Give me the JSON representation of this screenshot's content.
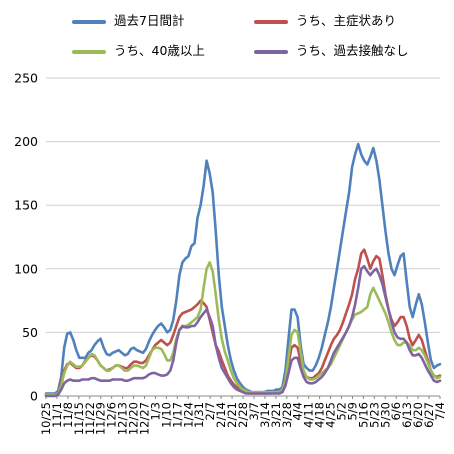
{
  "chart_data": {
    "type": "line",
    "title": "",
    "xlabel": "",
    "ylabel": "",
    "ylim": [
      0,
      250
    ],
    "yticks": [
      0,
      50,
      100,
      150,
      200,
      250
    ],
    "grid": true,
    "legend_position": "top",
    "xtick_labels": [
      "10/25",
      "11/1",
      "11/8",
      "11/15",
      "11/22",
      "11/29",
      "12/6",
      "12/13",
      "12/20",
      "12/27",
      "1/3",
      "1/10",
      "1/17",
      "1/24",
      "1/31",
      "2/7",
      "2/14",
      "2/21",
      "2/28",
      "3/7",
      "3/14",
      "3/21",
      "3/28",
      "4/4",
      "4/11",
      "4/18",
      "4/25",
      "5/2",
      "5/9",
      "5/16",
      "5/23",
      "5/30",
      "6/6",
      "6/13",
      "6/20",
      "6/27",
      "7/4"
    ],
    "series": [
      {
        "name": "過去7日間計",
        "color": "#4f81bd",
        "values": [
          2,
          2,
          2,
          2,
          4,
          15,
          38,
          49,
          50,
          44,
          36,
          30,
          30,
          30,
          34,
          36,
          40,
          43,
          45,
          38,
          33,
          32,
          34,
          35,
          36,
          34,
          32,
          33,
          37,
          38,
          36,
          35,
          34,
          37,
          43,
          48,
          52,
          55,
          57,
          54,
          50,
          52,
          60,
          75,
          95,
          105,
          108,
          110,
          118,
          120,
          140,
          150,
          165,
          185,
          175,
          160,
          130,
          95,
          70,
          55,
          40,
          28,
          20,
          14,
          10,
          7,
          5,
          4,
          3,
          3,
          3,
          3,
          3,
          4,
          4,
          4,
          5,
          5,
          7,
          20,
          45,
          68,
          68,
          62,
          40,
          25,
          22,
          20,
          20,
          24,
          30,
          38,
          48,
          58,
          70,
          85,
          100,
          115,
          130,
          145,
          160,
          180,
          190,
          198,
          190,
          185,
          182,
          188,
          195,
          185,
          170,
          150,
          130,
          112,
          100,
          95,
          103,
          110,
          112,
          90,
          70,
          62,
          72,
          80,
          72,
          58,
          42,
          28,
          22,
          24,
          25
        ]
      },
      {
        "name": "うち、主症状あり",
        "color": "#c0504d",
        "values": [
          1,
          1,
          1,
          1,
          2,
          10,
          20,
          25,
          26,
          24,
          22,
          22,
          24,
          28,
          30,
          32,
          31,
          28,
          24,
          22,
          20,
          21,
          22,
          24,
          24,
          23,
          22,
          22,
          25,
          27,
          27,
          26,
          26,
          28,
          32,
          36,
          40,
          42,
          44,
          42,
          40,
          42,
          48,
          55,
          62,
          65,
          66,
          67,
          68,
          70,
          72,
          75,
          73,
          70,
          60,
          50,
          40,
          35,
          28,
          22,
          16,
          12,
          9,
          7,
          5,
          4,
          3,
          2,
          2,
          2,
          2,
          2,
          2,
          2,
          2,
          3,
          3,
          3,
          4,
          10,
          25,
          38,
          40,
          38,
          28,
          18,
          15,
          14,
          14,
          16,
          18,
          22,
          28,
          34,
          40,
          45,
          48,
          52,
          58,
          65,
          72,
          80,
          92,
          100,
          112,
          115,
          108,
          100,
          106,
          110,
          108,
          95,
          80,
          68,
          60,
          55,
          58,
          62,
          62,
          55,
          45,
          40,
          44,
          48,
          44,
          36,
          28,
          20,
          16,
          15,
          16
        ]
      },
      {
        "name": "うち、40歳以上",
        "color": "#9bbb59",
        "values": [
          1,
          1,
          1,
          1,
          2,
          8,
          18,
          24,
          27,
          25,
          23,
          23,
          24,
          27,
          30,
          33,
          32,
          28,
          24,
          22,
          20,
          20,
          22,
          24,
          24,
          22,
          20,
          20,
          22,
          24,
          24,
          23,
          22,
          24,
          30,
          36,
          38,
          38,
          37,
          33,
          28,
          28,
          34,
          45,
          52,
          54,
          55,
          56,
          58,
          60,
          62,
          68,
          85,
          100,
          105,
          98,
          80,
          60,
          45,
          35,
          28,
          20,
          14,
          10,
          7,
          5,
          4,
          3,
          3,
          3,
          3,
          3,
          3,
          3,
          3,
          3,
          3,
          3,
          5,
          12,
          30,
          48,
          52,
          50,
          35,
          20,
          15,
          13,
          13,
          14,
          16,
          18,
          20,
          22,
          25,
          30,
          35,
          40,
          45,
          50,
          55,
          60,
          64,
          65,
          66,
          68,
          70,
          80,
          85,
          80,
          75,
          70,
          65,
          58,
          50,
          44,
          40,
          40,
          42,
          42,
          40,
          36,
          36,
          38,
          36,
          32,
          26,
          20,
          16,
          14,
          15
        ]
      },
      {
        "name": "うち、過去接触なし",
        "color": "#8064a2",
        "values": [
          0,
          0,
          0,
          0,
          1,
          5,
          10,
          12,
          13,
          12,
          12,
          12,
          13,
          13,
          13,
          14,
          14,
          13,
          12,
          12,
          12,
          12,
          13,
          13,
          13,
          13,
          12,
          12,
          13,
          14,
          14,
          14,
          14,
          15,
          17,
          18,
          18,
          17,
          16,
          16,
          17,
          20,
          28,
          42,
          52,
          55,
          54,
          54,
          55,
          55,
          58,
          62,
          65,
          68,
          62,
          55,
          40,
          30,
          22,
          18,
          14,
          10,
          7,
          5,
          4,
          3,
          2,
          2,
          2,
          2,
          2,
          2,
          2,
          2,
          2,
          2,
          2,
          2,
          3,
          8,
          18,
          28,
          30,
          30,
          22,
          15,
          11,
          10,
          10,
          11,
          13,
          15,
          18,
          22,
          28,
          34,
          38,
          42,
          46,
          50,
          55,
          62,
          72,
          85,
          100,
          102,
          98,
          95,
          98,
          100,
          95,
          88,
          78,
          68,
          58,
          50,
          46,
          45,
          45,
          42,
          36,
          32,
          32,
          33,
          30,
          25,
          20,
          16,
          12,
          11,
          12
        ]
      }
    ]
  },
  "legend": [
    {
      "label": "過去7日間計",
      "color": "#4f81bd"
    },
    {
      "label": "うち、主症状あり",
      "color": "#c0504d"
    },
    {
      "label": "うち、40歳以上",
      "color": "#9bbb59"
    },
    {
      "label": "うち、過去接触なし",
      "color": "#8064a2"
    }
  ]
}
